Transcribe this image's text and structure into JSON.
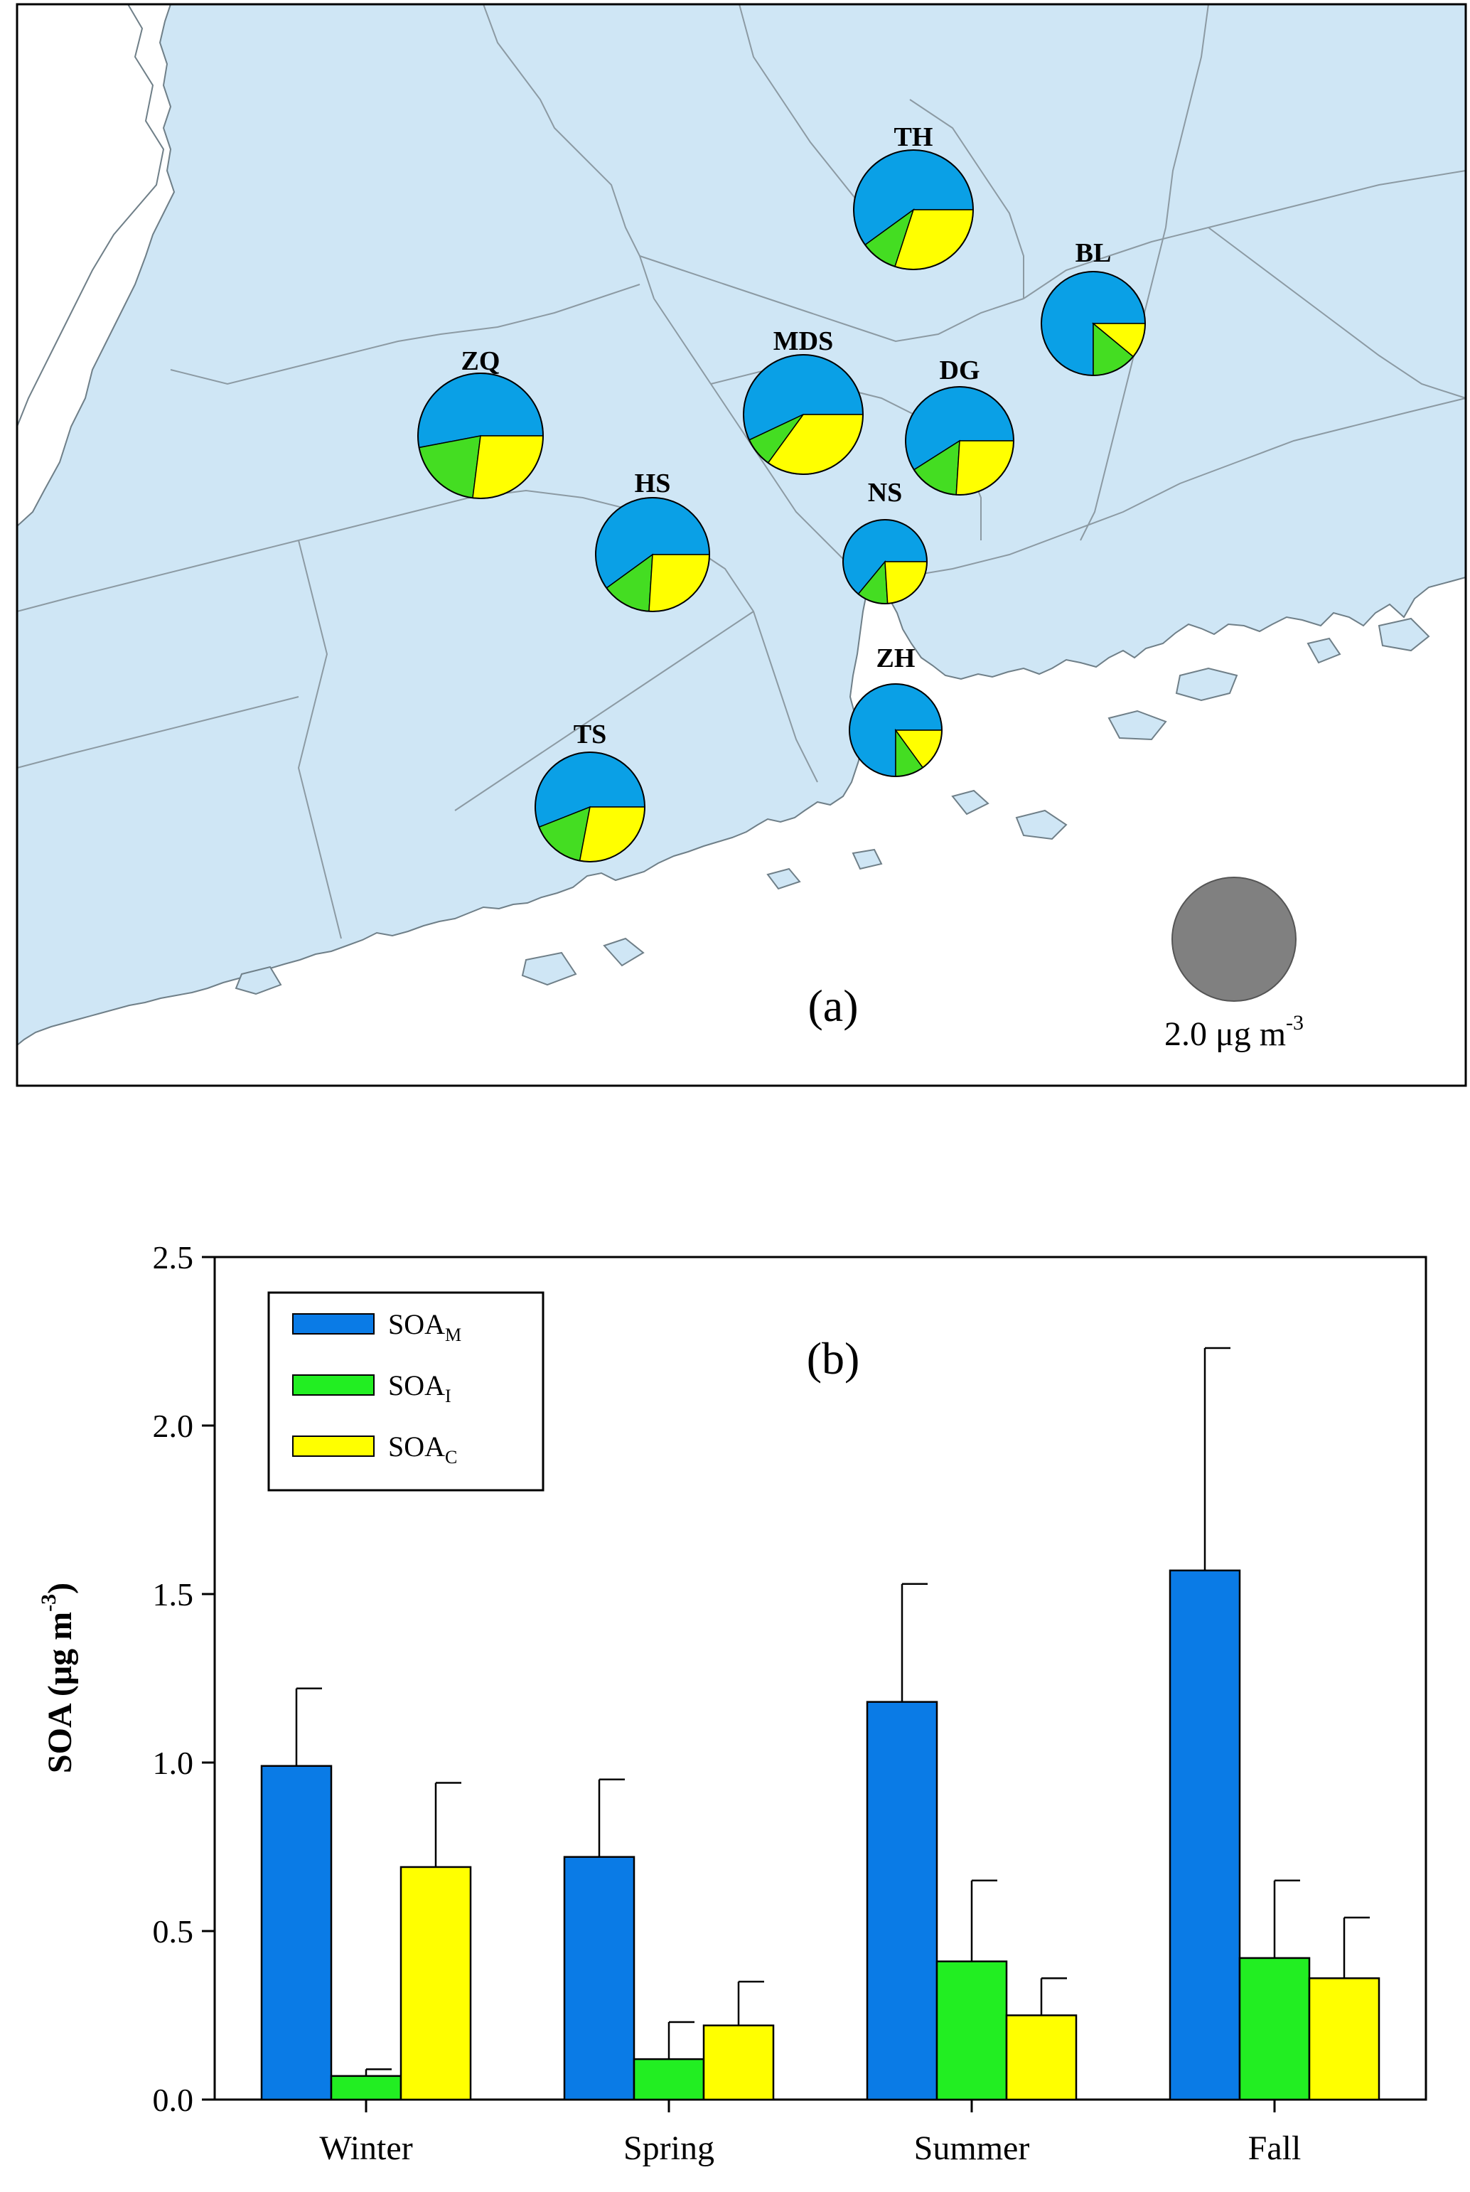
{
  "panel_a": {
    "label": "(a)",
    "scale_label": "2.0 μg m",
    "scale_label_sup": "-3",
    "map_water_color": "#ffffff",
    "map_land_color": "#cfe6f5",
    "map_border_color": "#8c9aa3",
    "scale_circle_color": "#808080"
  },
  "chart_data": [
    {
      "type": "pie",
      "title": "",
      "description_note": "",
      "colors": {
        "SOA_M": "#0aa0e6",
        "SOA_I": "#44dd22",
        "SOA_C": "#ffff00"
      },
      "stations": [
        {
          "name": "TH",
          "slices": [
            0.6,
            0.1,
            0.3
          ]
        },
        {
          "name": "BL",
          "slices": [
            0.75,
            0.14,
            0.11
          ]
        },
        {
          "name": "ZQ",
          "slices": [
            0.53,
            0.2,
            0.27
          ]
        },
        {
          "name": "MDS",
          "slices": [
            0.57,
            0.08,
            0.35
          ]
        },
        {
          "name": "DG",
          "slices": [
            0.59,
            0.15,
            0.26
          ]
        },
        {
          "name": "HS",
          "slices": [
            0.6,
            0.14,
            0.26
          ]
        },
        {
          "name": "NS",
          "slices": [
            0.64,
            0.12,
            0.24
          ]
        },
        {
          "name": "ZH",
          "slices": [
            0.75,
            0.1,
            0.15
          ]
        },
        {
          "name": "TS",
          "slices": [
            0.56,
            0.16,
            0.28
          ]
        }
      ]
    },
    {
      "type": "bar",
      "label": "(b)",
      "categories": [
        "Winter",
        "Spring",
        "Summer",
        "Fall"
      ],
      "ylabel": "SOA (μg m",
      "ylabel_sup": "-3",
      "ylabel_end": ")",
      "ylim": [
        0,
        2.5
      ],
      "yticks": [
        "0.0",
        "0.5",
        "1.0",
        "1.5",
        "2.0",
        "2.5"
      ],
      "legend_position": "top-left",
      "series": [
        {
          "name": "SOA",
          "sub": "M",
          "color": "#0a7be6",
          "values": [
            0.99,
            0.72,
            1.18,
            1.57
          ],
          "errors": [
            0.23,
            0.23,
            0.35,
            0.66
          ]
        },
        {
          "name": "SOA",
          "sub": "I",
          "color": "#22ee22",
          "values": [
            0.07,
            0.12,
            0.41,
            0.42
          ],
          "errors": [
            0.02,
            0.11,
            0.24,
            0.23
          ]
        },
        {
          "name": "SOA",
          "sub": "C",
          "color": "#ffff00",
          "values": [
            0.69,
            0.22,
            0.25,
            0.36
          ],
          "errors": [
            0.25,
            0.13,
            0.11,
            0.18
          ]
        }
      ]
    }
  ]
}
